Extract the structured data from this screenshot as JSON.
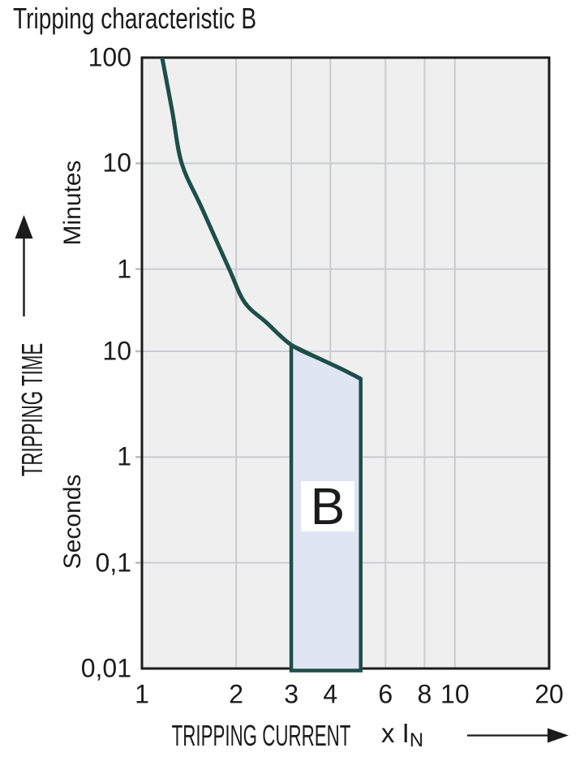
{
  "page": {
    "title": "Tripping characteristic B"
  },
  "chart_data": {
    "type": "line",
    "title": "Tripping characteristic B",
    "x_axis": {
      "label": "TRIPPING CURRENT",
      "unit_prefix": "x I",
      "unit_subscript": "N",
      "scale": "log",
      "min": 1,
      "max": 20,
      "tick_labels": [
        "1",
        "2",
        "3",
        "4",
        "6",
        "8",
        "10",
        "20"
      ],
      "tick_values": [
        1,
        2,
        3,
        4,
        6,
        8,
        10,
        20
      ],
      "gridline_values": [
        2,
        3,
        4,
        6,
        8,
        10
      ]
    },
    "y_axis": {
      "label": "TRIPPING TIME",
      "upper_unit": "Minutes",
      "lower_unit": "Seconds",
      "scale": "log",
      "min_seconds": 0.01,
      "max_seconds": 6000,
      "ticks": [
        {
          "label": "100",
          "seconds": 6000,
          "unit": "minutes"
        },
        {
          "label": "10",
          "seconds": 600,
          "unit": "minutes"
        },
        {
          "label": "1",
          "seconds": 60,
          "unit": "minutes"
        },
        {
          "label": "10",
          "seconds": 10,
          "unit": "seconds"
        },
        {
          "label": "1",
          "seconds": 1,
          "unit": "seconds"
        },
        {
          "label": "0,1",
          "seconds": 0.1,
          "unit": "seconds"
        },
        {
          "label": "0,01",
          "seconds": 0.01,
          "unit": "seconds"
        }
      ]
    },
    "series": [
      {
        "name": "tripping-curve",
        "points": [
          [
            1.16,
            6000
          ],
          [
            1.25,
            1860
          ],
          [
            1.34,
            600
          ],
          [
            1.55,
            230
          ],
          [
            1.9,
            60
          ],
          [
            2.13,
            29
          ],
          [
            2.5,
            18.7
          ],
          [
            3.0,
            11.5
          ],
          [
            3.7,
            8.5
          ],
          [
            4.3,
            6.9
          ],
          [
            5.0,
            5.5
          ]
        ]
      }
    ],
    "region": {
      "label": "B",
      "x_min": 3,
      "x_max": 5,
      "top_seconds_at_x_min": 11.5,
      "top_seconds_at_x_max": 5.5,
      "bottom_seconds": 0.01
    },
    "colors": {
      "curve": "#1d4e49",
      "region_fill": "#dfe5f3",
      "plot_background": "#efefef",
      "gridline": "#caccd0",
      "tick_stub": "#b9bcc0",
      "border": "#1b1b1b",
      "text": "#1b1b1b",
      "region_label_background": "#ffffff"
    }
  }
}
